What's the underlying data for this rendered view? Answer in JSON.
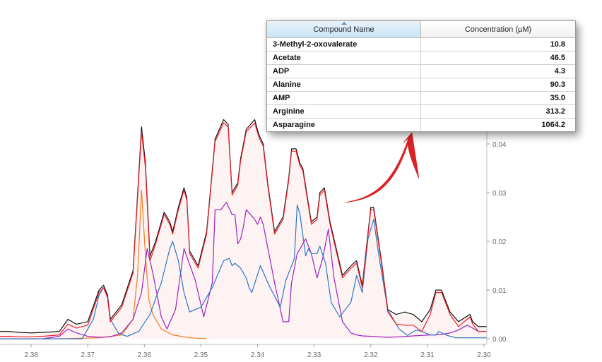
{
  "table": {
    "columns": [
      "Compound Name",
      "Concentration  (µM)"
    ],
    "sort_column": "Compound Name",
    "sort_direction": "ascending",
    "rows": [
      {
        "name": "3-Methyl-2-oxovalerate",
        "value": "10.8"
      },
      {
        "name": "Acetate",
        "value": "46.5"
      },
      {
        "name": "ADP",
        "value": "4.3"
      },
      {
        "name": "Alanine",
        "value": "90.3"
      },
      {
        "name": "AMP",
        "value": "35.0"
      },
      {
        "name": "Arginine",
        "value": "313.2"
      },
      {
        "name": "Asparagine",
        "value": "1064.2"
      }
    ]
  },
  "chart_data": {
    "type": "line",
    "x_axis": {
      "ticks": [
        "2.38",
        "2.37",
        "2.36",
        "2.35",
        "2.34",
        "2.33",
        "2.32",
        "2.31",
        "2.30"
      ],
      "range": [
        2.3855,
        2.2995
      ],
      "reversed": true
    },
    "y_axis": {
      "ticks": [
        "0.00",
        "0.01",
        "0.02",
        "0.03",
        "0.04"
      ],
      "range": [
        -0.001,
        0.0455
      ],
      "position": "right"
    },
    "fill_color": "#fdf3f3",
    "series": [
      {
        "color": "#000000",
        "x": [
          2.3855,
          2.384,
          2.382,
          2.38,
          2.378,
          2.375,
          2.3735,
          2.372,
          2.37,
          2.368,
          2.3672,
          2.3665,
          2.366,
          2.364,
          2.362,
          2.3605,
          2.3598,
          2.359,
          2.358,
          2.3565,
          2.3555,
          2.355,
          2.354,
          2.353,
          2.3525,
          2.352,
          2.3505,
          2.349,
          2.3475,
          2.346,
          2.3452,
          2.3445,
          2.3435,
          2.343,
          2.342,
          2.3405,
          2.3398,
          2.339,
          2.3382,
          2.337,
          2.3355,
          2.3345,
          2.334,
          2.3332,
          2.3325,
          2.332,
          2.3305,
          2.3295,
          2.329,
          2.3282,
          2.3272,
          2.325,
          2.3235,
          2.3225,
          2.3215,
          2.32,
          2.3195,
          2.318,
          2.317,
          2.3155,
          2.314,
          2.3125,
          2.311,
          2.3095,
          2.3085,
          2.3075,
          2.306,
          2.3045,
          2.3025,
          2.302,
          2.301,
          2.2995
        ],
        "y": [
          0.0015,
          0.0015,
          0.0013,
          0.0012,
          0.0013,
          0.0015,
          0.004,
          0.003,
          0.0035,
          0.01,
          0.011,
          0.009,
          0.004,
          0.007,
          0.014,
          0.0435,
          0.036,
          0.017,
          0.02,
          0.026,
          0.024,
          0.022,
          0.027,
          0.031,
          0.029,
          0.018,
          0.015,
          0.022,
          0.041,
          0.045,
          0.044,
          0.03,
          0.032,
          0.037,
          0.043,
          0.045,
          0.042,
          0.04,
          0.032,
          0.022,
          0.025,
          0.033,
          0.039,
          0.039,
          0.036,
          0.035,
          0.024,
          0.025,
          0.03,
          0.031,
          0.024,
          0.013,
          0.015,
          0.016,
          0.011,
          0.027,
          0.027,
          0.015,
          0.006,
          0.005,
          0.0055,
          0.005,
          0.0035,
          0.006,
          0.01,
          0.01,
          0.0055,
          0.0035,
          0.005,
          0.0035,
          0.0025,
          0.0025
        ]
      },
      {
        "color": "#e8202a",
        "x": [
          2.3855,
          2.384,
          2.382,
          2.38,
          2.378,
          2.375,
          2.3735,
          2.372,
          2.37,
          2.368,
          2.3672,
          2.3665,
          2.366,
          2.364,
          2.362,
          2.3605,
          2.3598,
          2.359,
          2.358,
          2.3565,
          2.3555,
          2.355,
          2.354,
          2.353,
          2.3525,
          2.352,
          2.3505,
          2.349,
          2.3475,
          2.346,
          2.3452,
          2.3445,
          2.3435,
          2.343,
          2.342,
          2.3405,
          2.3398,
          2.339,
          2.3382,
          2.337,
          2.3355,
          2.3345,
          2.334,
          2.3332,
          2.3325,
          2.332,
          2.3305,
          2.3295,
          2.329,
          2.3282,
          2.3272,
          2.325,
          2.3235,
          2.3225,
          2.3215,
          2.32,
          2.3195,
          2.318,
          2.317,
          2.3155,
          2.314,
          2.3125,
          2.311,
          2.3095,
          2.3085,
          2.3075,
          2.306,
          2.3045,
          2.3025,
          2.302,
          2.301,
          2.2995
        ],
        "y": [
          0.0005,
          0.0005,
          0.0004,
          0.0004,
          0.0005,
          0.0008,
          0.003,
          0.0022,
          0.0028,
          0.0095,
          0.0105,
          0.0085,
          0.0035,
          0.0065,
          0.0135,
          0.0425,
          0.035,
          0.016,
          0.0195,
          0.0255,
          0.0235,
          0.0215,
          0.0265,
          0.0305,
          0.0285,
          0.0175,
          0.0145,
          0.0215,
          0.0405,
          0.0443,
          0.0435,
          0.0295,
          0.0315,
          0.0365,
          0.0425,
          0.0443,
          0.0415,
          0.0395,
          0.0315,
          0.0215,
          0.0245,
          0.0325,
          0.0385,
          0.0385,
          0.0355,
          0.0345,
          0.0235,
          0.0245,
          0.0295,
          0.0305,
          0.0235,
          0.0125,
          0.0145,
          0.0155,
          0.0105,
          0.0265,
          0.0265,
          0.0145,
          0.0055,
          0.003,
          0.0028,
          0.0028,
          0.0015,
          0.005,
          0.0095,
          0.0095,
          0.005,
          0.0025,
          0.0045,
          0.003,
          0.0015,
          0.0015
        ]
      },
      {
        "color": "#2a78c6",
        "x": [
          2.3855,
          2.384,
          2.382,
          2.38,
          2.378,
          2.375,
          2.373,
          2.371,
          2.369,
          2.368,
          2.3672,
          2.3665,
          2.366,
          2.3645,
          2.363,
          2.361,
          2.359,
          2.357,
          2.3555,
          2.355,
          2.354,
          2.353,
          2.352,
          2.35,
          2.348,
          2.346,
          2.345,
          2.3445,
          2.344,
          2.343,
          2.342,
          2.3415,
          2.341,
          2.3395,
          2.338,
          2.336,
          2.335,
          2.3335,
          2.333,
          2.3325,
          2.3315,
          2.331,
          2.3305,
          2.3295,
          2.329,
          2.328,
          2.327,
          2.3255,
          2.3235,
          2.3225,
          2.3215,
          2.3205,
          2.3195,
          2.3185,
          2.317,
          2.315,
          2.3135,
          2.312,
          2.311,
          2.3095,
          2.3085,
          2.308,
          2.3065,
          2.305,
          2.3035,
          2.302,
          2.3005,
          2.2995
        ],
        "y": [
          0,
          0,
          0,
          0,
          0,
          0,
          0,
          0,
          0.004,
          0.009,
          0.0105,
          0.0085,
          0.004,
          0.001,
          0.0005,
          0.0015,
          0.005,
          0.0115,
          0.0185,
          0.02,
          0.016,
          0.0095,
          0.0055,
          0.0065,
          0.0105,
          0.016,
          0.0165,
          0.015,
          0.0155,
          0.0145,
          0.0125,
          0.0105,
          0.0095,
          0.015,
          0.011,
          0.0065,
          0.012,
          0.0165,
          0.0275,
          0.0255,
          0.017,
          0.0185,
          0.0175,
          0.0175,
          0.019,
          0.0155,
          0.0075,
          0.0045,
          0.0075,
          0.013,
          0.0095,
          0.0205,
          0.0245,
          0.0165,
          0.006,
          0.002,
          0.0007,
          0.0018,
          0.0015,
          0.0008,
          0.0008,
          0.0015,
          0.0007,
          0.0002,
          0.0002,
          0.0002,
          0.0002,
          0.0002
        ]
      },
      {
        "color": "#a020c0",
        "x": [
          2.3855,
          2.384,
          2.382,
          2.38,
          2.378,
          2.375,
          2.3735,
          2.372,
          2.37,
          2.368,
          2.366,
          2.364,
          2.362,
          2.3605,
          2.3595,
          2.3585,
          2.357,
          2.356,
          2.3545,
          2.353,
          2.351,
          2.3495,
          2.348,
          2.3475,
          2.3465,
          2.3455,
          2.3445,
          2.344,
          2.3435,
          2.343,
          2.3425,
          2.342,
          2.3405,
          2.34,
          2.3395,
          2.339,
          2.337,
          2.3355,
          2.3345,
          2.334,
          2.333,
          2.3315,
          2.3305,
          2.3295,
          2.3285,
          2.3275,
          2.3265,
          2.325,
          2.3235,
          2.3225,
          2.3215,
          2.32,
          2.3185,
          2.317,
          2.315,
          2.3135,
          2.3125,
          2.311,
          2.3095,
          2.3085,
          2.3075,
          2.306,
          2.3045,
          2.303,
          2.302,
          2.301,
          2.2995
        ],
        "y": [
          0,
          0,
          0,
          0,
          0,
          0.0005,
          0.002,
          0.0012,
          0.0005,
          0.0003,
          0.0004,
          0.0012,
          0.004,
          0.0095,
          0.0185,
          0.0135,
          0.0045,
          0.002,
          0.006,
          0.0185,
          0.012,
          0.0045,
          0.0115,
          0.0265,
          0.0265,
          0.028,
          0.0255,
          0.0255,
          0.0195,
          0.0205,
          0.023,
          0.0265,
          0.0245,
          0.0235,
          0.025,
          0.0235,
          0.0115,
          0.0035,
          0.0035,
          0.0115,
          0.0175,
          0.0205,
          0.0175,
          0.0125,
          0.0165,
          0.0225,
          0.0125,
          0.0035,
          0.0012,
          0.0008,
          0.0006,
          0.0005,
          0.0004,
          0.0003,
          0.0004,
          0.0005,
          0.0006,
          0.0007,
          0.0008,
          0.0008,
          0.0009,
          0.0012,
          0.0018,
          0.0028,
          0.0022,
          0.0015,
          0.0015
        ]
      },
      {
        "color": "#f07d1e",
        "x": [
          2.3855,
          2.375,
          2.368,
          2.364,
          2.362,
          2.3612,
          2.3605,
          2.3598,
          2.3592,
          2.3585,
          2.357,
          2.355,
          2.352,
          2.349
        ],
        "y": [
          0,
          0,
          0.0002,
          0.0008,
          0.004,
          0.013,
          0.0305,
          0.017,
          0.008,
          0.005,
          0.002,
          0.0008,
          0.0002,
          0
        ]
      }
    ]
  }
}
